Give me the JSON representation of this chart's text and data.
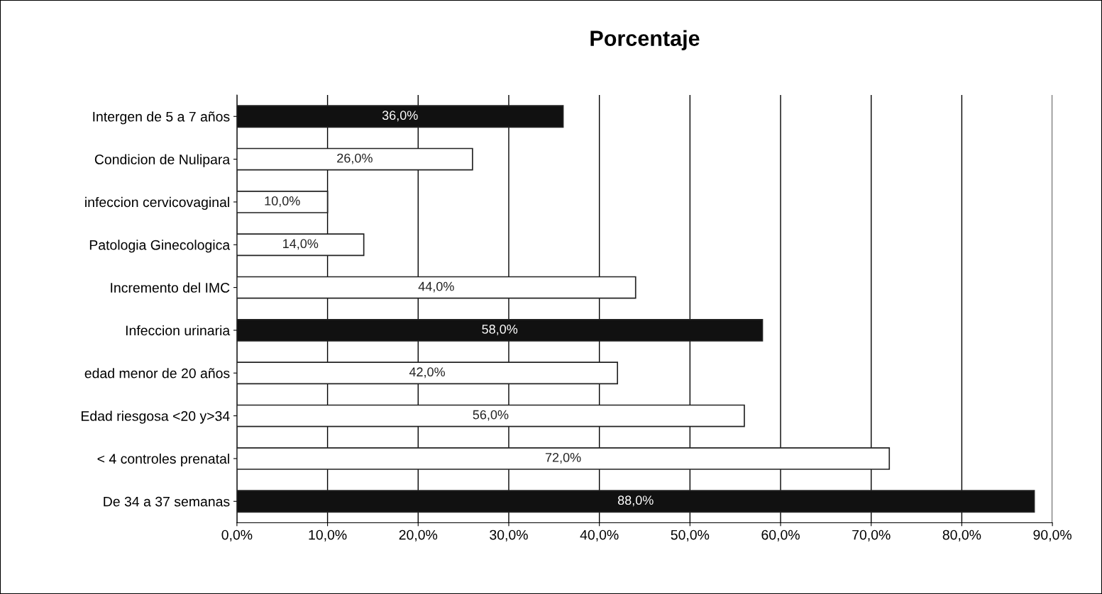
{
  "chart_data": {
    "type": "bar",
    "orientation": "horizontal",
    "title": "Porcentaje",
    "categories": [
      "Intergen de 5 a 7 años",
      "Condicion de Nulipara",
      "infeccion cervicovaginal",
      "Patologia Ginecologica",
      "Incremento del IMC",
      "Infeccion urinaria",
      "edad menor de 20 años",
      "Edad riesgosa <20 y>34",
      "< 4 controles prenatal",
      "De 34 a 37 semanas"
    ],
    "values": [
      36,
      26,
      10,
      14,
      44,
      58,
      42,
      56,
      72,
      88
    ],
    "value_labels": [
      "36,0%",
      "26,0%",
      "10,0%",
      "14,0%",
      "44,0%",
      "58,0%",
      "42,0%",
      "56,0%",
      "72,0%",
      "88,0%"
    ],
    "colors": [
      "#111111",
      "#ffffff",
      "#ffffff",
      "#ffffff",
      "#ffffff",
      "#111111",
      "#ffffff",
      "#ffffff",
      "#ffffff",
      "#111111"
    ],
    "xlim": [
      0,
      90
    ],
    "xticks": [
      {
        "value": 0,
        "label": "0,0%"
      },
      {
        "value": 10,
        "label": "10,0%"
      },
      {
        "value": 20,
        "label": "20,0%"
      },
      {
        "value": 30,
        "label": "30,0%"
      },
      {
        "value": 40,
        "label": "40,0%"
      },
      {
        "value": 50,
        "label": "50,0%"
      },
      {
        "value": 60,
        "label": "60,0%"
      },
      {
        "value": 70,
        "label": "70,0%"
      },
      {
        "value": 80,
        "label": "80,0%"
      },
      {
        "value": 90,
        "label": "90,0%"
      }
    ],
    "grid": "x",
    "legend": false
  }
}
